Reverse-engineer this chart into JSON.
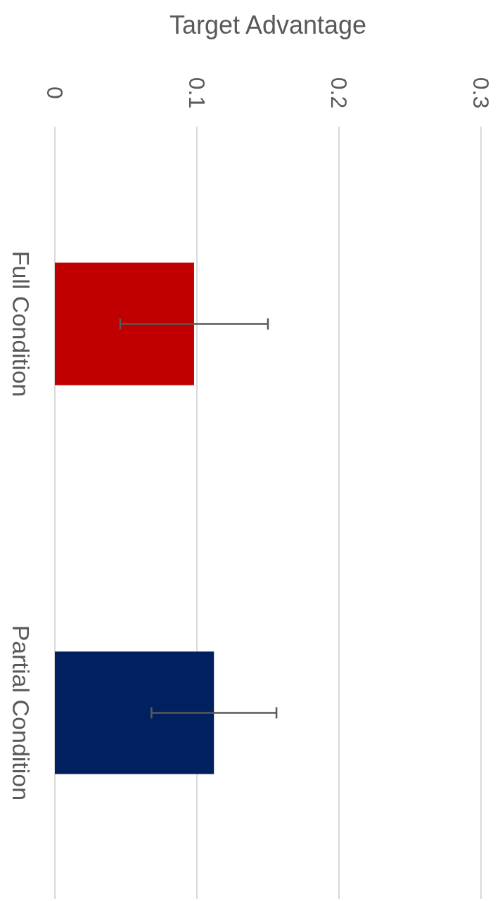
{
  "chart_data": {
    "type": "bar",
    "orientation": "horizontal",
    "xlabel": "Target Advantage",
    "categories": [
      "Full Condition",
      "Partial Condition"
    ],
    "values": [
      0.098,
      0.112
    ],
    "colors": [
      "#c00000",
      "#002060"
    ],
    "errors": [
      0.052,
      0.044
    ],
    "xlim": [
      0,
      0.3
    ],
    "xticks": [
      0,
      0.1,
      0.2,
      0.3
    ],
    "grid": true
  }
}
